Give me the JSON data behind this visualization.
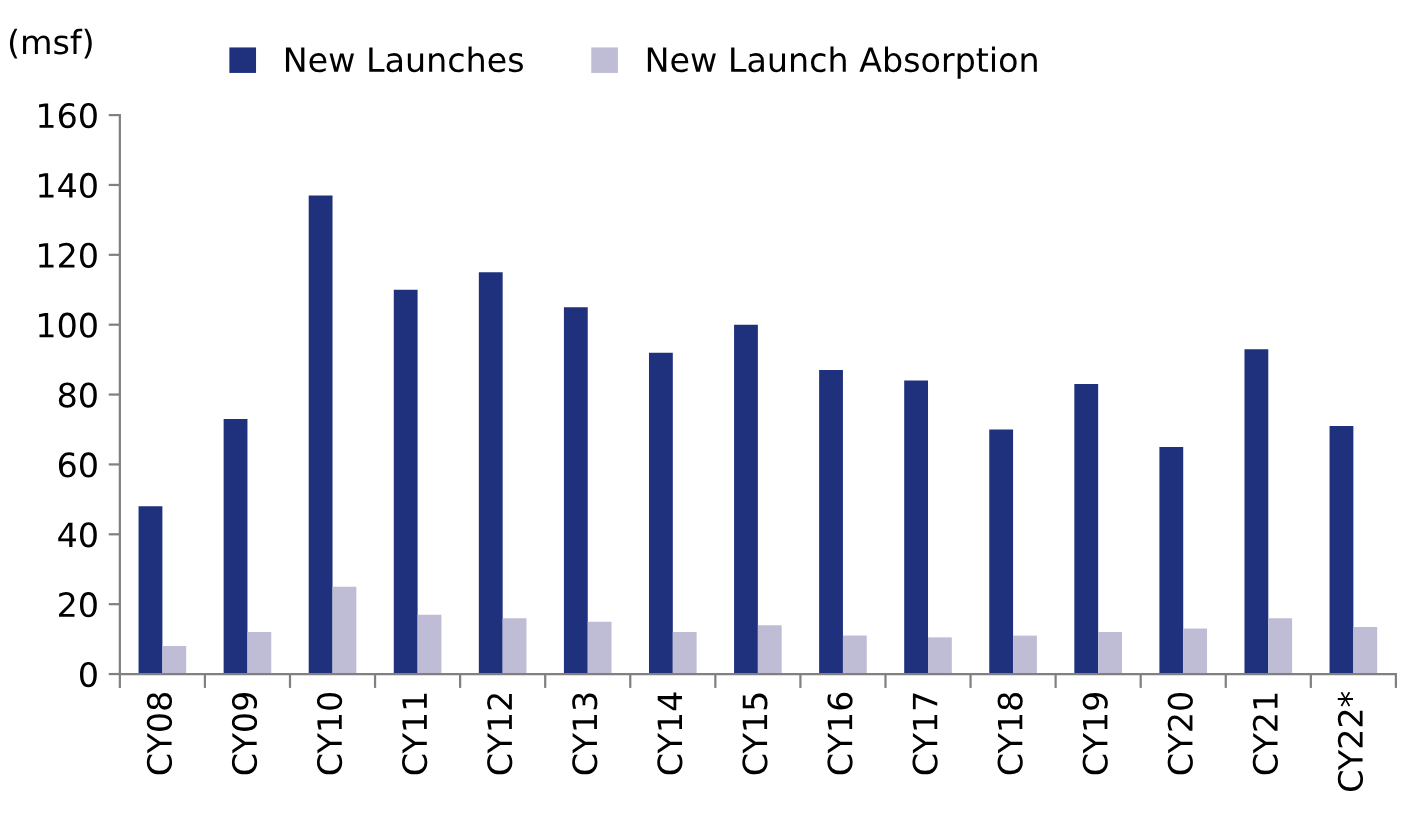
{
  "chart_data": {
    "type": "bar",
    "ylabel": "(msf)",
    "categories": [
      "CY08",
      "CY09",
      "CY10",
      "CY11",
      "CY12",
      "CY13",
      "CY14",
      "CY15",
      "CY16",
      "CY17",
      "CY18",
      "CY19",
      "CY20",
      "CY21",
      "CY22*"
    ],
    "series": [
      {
        "name": "New Launches",
        "color": "#1f317c",
        "values": [
          48,
          73,
          137,
          110,
          115,
          105,
          92,
          100,
          87,
          84,
          70,
          83,
          65,
          93,
          71
        ]
      },
      {
        "name": "New Launch Absorption",
        "color": "#bfbdd5",
        "values": [
          8,
          12,
          25,
          17,
          16,
          15,
          12,
          14,
          11,
          10.5,
          11,
          12,
          13,
          16,
          13.5
        ]
      }
    ],
    "ylim": [
      0,
      160
    ],
    "yticks": [
      0,
      20,
      40,
      60,
      80,
      100,
      120,
      140,
      160
    ],
    "grid": false,
    "legend": "top"
  }
}
